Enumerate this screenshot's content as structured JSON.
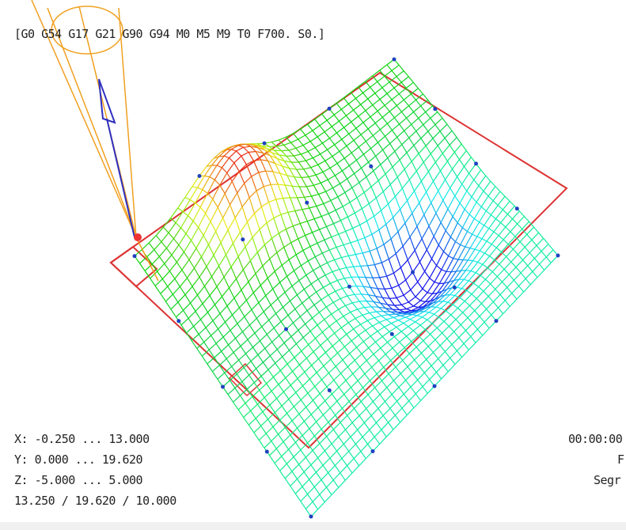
{
  "header": {
    "modal_state": "[G0 G54 G17 G21 G90 G94 M0 M5 M9 T0 F700. S0.]"
  },
  "extents": {
    "x": "X: -0.250 ... 13.000",
    "y": "Y: 0.000 ... 19.620",
    "z": "Z: -5.000 ... 5.000",
    "size": "13.250 / 19.620 / 10.000"
  },
  "status": {
    "time": "00:00:00",
    "feed": "F",
    "segments": "Segr"
  }
}
